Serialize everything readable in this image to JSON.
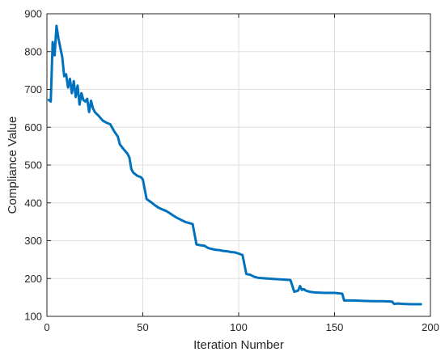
{
  "chart_data": {
    "type": "line",
    "title": "",
    "xlabel": "Iteration Number",
    "ylabel": "Compliance Value",
    "xlim": [
      0,
      200
    ],
    "ylim": [
      100,
      900
    ],
    "xticks": [
      0,
      50,
      100,
      150,
      200
    ],
    "yticks": [
      100,
      200,
      300,
      400,
      500,
      600,
      700,
      800,
      900
    ],
    "grid": true,
    "legend": "none",
    "series_color": "#0072BD",
    "series": [
      {
        "points": [
          [
            1,
            672
          ],
          [
            2,
            668
          ],
          [
            3,
            825
          ],
          [
            4,
            790
          ],
          [
            5,
            868
          ],
          [
            6,
            835
          ],
          [
            7,
            810
          ],
          [
            8,
            785
          ],
          [
            9,
            735
          ],
          [
            10,
            740
          ],
          [
            11,
            705
          ],
          [
            12,
            728
          ],
          [
            13,
            690
          ],
          [
            14,
            722
          ],
          [
            15,
            680
          ],
          [
            16,
            710
          ],
          [
            17,
            660
          ],
          [
            18,
            690
          ],
          [
            19,
            672
          ],
          [
            20,
            668
          ],
          [
            21,
            675
          ],
          [
            22,
            640
          ],
          [
            23,
            670
          ],
          [
            24,
            650
          ],
          [
            25,
            640
          ],
          [
            27,
            630
          ],
          [
            29,
            618
          ],
          [
            31,
            612
          ],
          [
            33,
            608
          ],
          [
            35,
            590
          ],
          [
            37,
            575
          ],
          [
            38,
            555
          ],
          [
            40,
            542
          ],
          [
            42,
            530
          ],
          [
            43,
            520
          ],
          [
            44,
            490
          ],
          [
            45,
            480
          ],
          [
            47,
            472
          ],
          [
            49,
            468
          ],
          [
            50,
            462
          ],
          [
            52,
            410
          ],
          [
            54,
            403
          ],
          [
            56,
            395
          ],
          [
            58,
            388
          ],
          [
            60,
            383
          ],
          [
            62,
            379
          ],
          [
            64,
            373
          ],
          [
            66,
            366
          ],
          [
            68,
            360
          ],
          [
            70,
            355
          ],
          [
            72,
            350
          ],
          [
            74,
            347
          ],
          [
            76,
            344
          ],
          [
            78,
            290
          ],
          [
            80,
            288
          ],
          [
            82,
            287
          ],
          [
            84,
            281
          ],
          [
            86,
            278
          ],
          [
            88,
            276
          ],
          [
            90,
            275
          ],
          [
            92,
            273
          ],
          [
            94,
            272
          ],
          [
            96,
            270
          ],
          [
            98,
            269
          ],
          [
            100,
            266
          ],
          [
            102,
            262
          ],
          [
            104,
            212
          ],
          [
            106,
            210
          ],
          [
            108,
            205
          ],
          [
            110,
            202
          ],
          [
            112,
            201
          ],
          [
            115,
            200
          ],
          [
            118,
            199
          ],
          [
            121,
            198
          ],
          [
            124,
            197
          ],
          [
            127,
            196
          ],
          [
            129,
            165
          ],
          [
            131,
            168
          ],
          [
            132,
            180
          ],
          [
            133,
            170
          ],
          [
            134,
            172
          ],
          [
            135,
            168
          ],
          [
            137,
            165
          ],
          [
            140,
            163
          ],
          [
            145,
            162
          ],
          [
            150,
            162
          ],
          [
            154,
            160
          ],
          [
            155,
            142
          ],
          [
            160,
            142
          ],
          [
            165,
            141
          ],
          [
            170,
            140
          ],
          [
            175,
            140
          ],
          [
            180,
            139
          ],
          [
            181,
            133
          ],
          [
            183,
            134
          ],
          [
            186,
            133
          ],
          [
            190,
            132
          ],
          [
            195,
            132
          ]
        ]
      }
    ]
  }
}
